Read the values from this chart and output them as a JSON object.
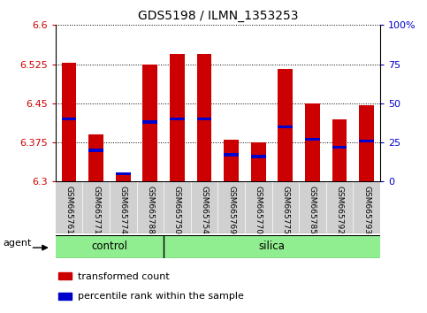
{
  "title": "GDS5198 / ILMN_1353253",
  "samples": [
    "GSM665761",
    "GSM665771",
    "GSM665774",
    "GSM665788",
    "GSM665750",
    "GSM665754",
    "GSM665769",
    "GSM665770",
    "GSM665775",
    "GSM665785",
    "GSM665792",
    "GSM665793"
  ],
  "groups": [
    "control",
    "control",
    "control",
    "control",
    "silica",
    "silica",
    "silica",
    "silica",
    "silica",
    "silica",
    "silica",
    "silica"
  ],
  "transformed_count": [
    6.527,
    6.39,
    6.315,
    6.525,
    6.545,
    6.545,
    6.38,
    6.375,
    6.515,
    6.45,
    6.42,
    6.447
  ],
  "percentile_rank": [
    40,
    20,
    5,
    38,
    40,
    40,
    17,
    16,
    35,
    27,
    22,
    26
  ],
  "ylim": [
    6.3,
    6.6
  ],
  "yticks": [
    6.3,
    6.375,
    6.45,
    6.525,
    6.6
  ],
  "right_yticks": [
    0,
    25,
    50,
    75,
    100
  ],
  "bar_color": "#cc0000",
  "percentile_color": "#0000cc",
  "green_color": "#90EE90",
  "bg_color": "#ffffff",
  "gray_color": "#d0d0d0",
  "tick_color_left": "#cc0000",
  "tick_color_right": "#0000cc",
  "bar_width": 0.55,
  "legend_items": [
    "transformed count",
    "percentile rank within the sample"
  ],
  "n_control": 4,
  "n_silica": 8
}
